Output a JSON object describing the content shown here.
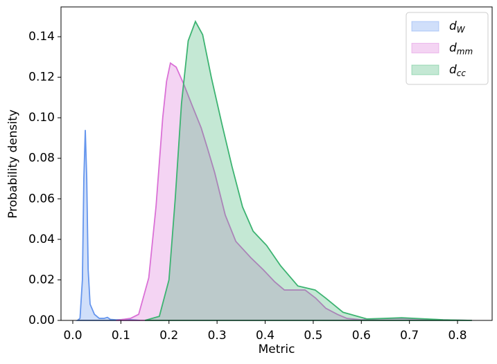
{
  "chart_data": {
    "type": "area",
    "xlabel": "Metric",
    "ylabel": "Probability density",
    "xlim": [
      -0.0245,
      0.872
    ],
    "ylim": [
      0,
      0.1547
    ],
    "xticks": [
      {
        "value": 0,
        "label": "0.0"
      },
      0.1,
      0.2,
      0.3,
      0.4,
      0.5,
      0.6,
      0.7,
      0.8
    ],
    "yticks": [
      {
        "value": 0,
        "label": "0.00"
      },
      0.02,
      0.04,
      0.06,
      0.08,
      {
        "value": 0.1,
        "label": "0.10"
      },
      0.12,
      0.14
    ],
    "legend": "upper right",
    "series": [
      {
        "name": "d_W",
        "color": "#6495ed",
        "x": [
          0.01,
          0.015,
          0.02,
          0.023,
          0.026,
          0.029,
          0.032,
          0.036,
          0.045,
          0.055,
          0.065,
          0.072,
          0.078,
          0.09,
          0.11,
          0.13,
          0.14
        ],
        "values": [
          0,
          0.001,
          0.02,
          0.07,
          0.094,
          0.07,
          0.025,
          0.008,
          0.003,
          0.001,
          0.001,
          0.0015,
          0.0005,
          0.0003,
          0.0005,
          0.0002,
          0
        ]
      },
      {
        "name": "d_mm",
        "color": "#da70d6",
        "x": [
          0.09,
          0.12,
          0.137,
          0.158,
          0.173,
          0.187,
          0.195,
          0.203,
          0.215,
          0.23,
          0.25,
          0.267,
          0.28,
          0.295,
          0.317,
          0.339,
          0.37,
          0.396,
          0.42,
          0.44,
          0.483,
          0.505,
          0.526,
          0.55,
          0.57,
          0.6,
          0.64,
          0.68,
          0.72,
          0.77,
          0.83
        ],
        "values": [
          0,
          0.001,
          0.003,
          0.021,
          0.056,
          0.1,
          0.118,
          0.127,
          0.125,
          0.117,
          0.105,
          0.095,
          0.085,
          0.073,
          0.052,
          0.039,
          0.031,
          0.025,
          0.019,
          0.015,
          0.015,
          0.011,
          0.006,
          0.003,
          0.001,
          0.0003,
          0.0008,
          0.001,
          0.0007,
          0.0003,
          0
        ]
      },
      {
        "name": "d_cc",
        "color": "#3cb371",
        "x": [
          0.15,
          0.18,
          0.2,
          0.213,
          0.226,
          0.24,
          0.255,
          0.27,
          0.288,
          0.31,
          0.331,
          0.353,
          0.375,
          0.403,
          0.432,
          0.468,
          0.504,
          0.526,
          0.562,
          0.612,
          0.65,
          0.684,
          0.72,
          0.77,
          0.83
        ],
        "values": [
          0,
          0.002,
          0.02,
          0.06,
          0.107,
          0.138,
          0.1475,
          0.141,
          0.12,
          0.097,
          0.076,
          0.056,
          0.044,
          0.037,
          0.027,
          0.017,
          0.015,
          0.011,
          0.004,
          0.0007,
          0.001,
          0.0013,
          0.0009,
          0.0003,
          0
        ]
      }
    ]
  }
}
